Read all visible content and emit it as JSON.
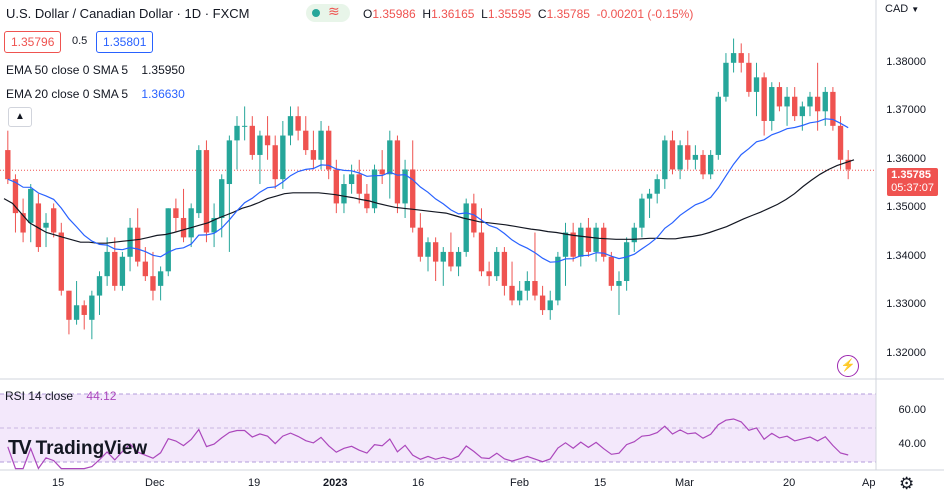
{
  "header": {
    "title": "U.S. Dollar / Canadian Dollar · 1D · FXCM",
    "ohlc": [
      {
        "label": "O",
        "value": "1.35986"
      },
      {
        "label": "H",
        "value": "1.36165"
      },
      {
        "label": "L",
        "value": "1.35595"
      },
      {
        "label": "C",
        "value": "1.35785"
      },
      {
        "label": "",
        "value": "-0.00201 (-0.15%)"
      }
    ],
    "status_icon": "market-status-icon",
    "wave_glyph": "≋"
  },
  "quote": {
    "bid": "1.35796",
    "spread": "0.5",
    "ask": "1.35801"
  },
  "indicators": {
    "ema50": {
      "label": "EMA 50 close 0 SMA 5",
      "value": "1.35950",
      "color": "#131722"
    },
    "ema20": {
      "label": "EMA 20 close 0 SMA 5",
      "value": "1.36630",
      "color": "#2962ff"
    }
  },
  "price_axis": {
    "currency": "CAD",
    "ticks": [
      "1.38000",
      "1.37000",
      "1.36000",
      "1.35000",
      "1.34000",
      "1.33000",
      "1.32000"
    ],
    "current_price": "1.35785",
    "countdown": "05:37:07"
  },
  "rsi": {
    "label": "RSI 14 close",
    "value": "44.12",
    "ticks": [
      "60.00",
      "40.00"
    ],
    "color": "#ab47bc"
  },
  "time_axis": {
    "ticks": [
      "15",
      "Dec",
      "19",
      "2023",
      "16",
      "Feb",
      "15",
      "Mar",
      "20",
      "Ap"
    ]
  },
  "brand": {
    "name": "TradingView",
    "logo": "TV"
  },
  "colors": {
    "up": "#26a69a",
    "down": "#ef5350",
    "ema50": "#131722",
    "ema20": "#2962ff",
    "rsi": "#ab47bc"
  },
  "chart_data": {
    "type": "candlestick",
    "ylim": [
      1.315,
      1.388
    ],
    "candles": [
      [
        1.362,
        1.366,
        1.355,
        1.356
      ],
      [
        1.356,
        1.357,
        1.345,
        1.349
      ],
      [
        1.349,
        1.352,
        1.343,
        1.345
      ],
      [
        1.347,
        1.355,
        1.343,
        1.354
      ],
      [
        1.351,
        1.353,
        1.341,
        1.342
      ],
      [
        1.346,
        1.349,
        1.342,
        1.347
      ],
      [
        1.35,
        1.351,
        1.344,
        1.345
      ],
      [
        1.345,
        1.347,
        1.332,
        1.333
      ],
      [
        1.333,
        1.333,
        1.324,
        1.327
      ],
      [
        1.327,
        1.335,
        1.326,
        1.33
      ],
      [
        1.33,
        1.331,
        1.325,
        1.328
      ],
      [
        1.327,
        1.333,
        1.323,
        1.332
      ],
      [
        1.332,
        1.337,
        1.328,
        1.336
      ],
      [
        1.336,
        1.344,
        1.334,
        1.341
      ],
      [
        1.341,
        1.344,
        1.333,
        1.334
      ],
      [
        1.334,
        1.341,
        1.333,
        1.34
      ],
      [
        1.34,
        1.348,
        1.337,
        1.346
      ],
      [
        1.346,
        1.35,
        1.338,
        1.339
      ],
      [
        1.339,
        1.342,
        1.335,
        1.336
      ],
      [
        1.336,
        1.341,
        1.331,
        1.333
      ],
      [
        1.334,
        1.338,
        1.331,
        1.337
      ],
      [
        1.337,
        1.35,
        1.336,
        1.35
      ],
      [
        1.35,
        1.352,
        1.345,
        1.348
      ],
      [
        1.348,
        1.354,
        1.343,
        1.344
      ],
      [
        1.344,
        1.351,
        1.342,
        1.35
      ],
      [
        1.349,
        1.363,
        1.348,
        1.362
      ],
      [
        1.362,
        1.364,
        1.343,
        1.345
      ],
      [
        1.345,
        1.351,
        1.342,
        1.348
      ],
      [
        1.348,
        1.357,
        1.344,
        1.356
      ],
      [
        1.355,
        1.365,
        1.341,
        1.364
      ],
      [
        1.364,
        1.369,
        1.358,
        1.367
      ],
      [
        1.367,
        1.371,
        1.364,
        1.367
      ],
      [
        1.367,
        1.369,
        1.36,
        1.361
      ],
      [
        1.361,
        1.366,
        1.355,
        1.365
      ],
      [
        1.365,
        1.369,
        1.36,
        1.363
      ],
      [
        1.363,
        1.365,
        1.354,
        1.356
      ],
      [
        1.356,
        1.368,
        1.354,
        1.365
      ],
      [
        1.365,
        1.371,
        1.363,
        1.369
      ],
      [
        1.369,
        1.371,
        1.364,
        1.366
      ],
      [
        1.366,
        1.369,
        1.361,
        1.362
      ],
      [
        1.362,
        1.366,
        1.358,
        1.36
      ],
      [
        1.36,
        1.368,
        1.358,
        1.366
      ],
      [
        1.366,
        1.367,
        1.356,
        1.358
      ],
      [
        1.358,
        1.36,
        1.349,
        1.351
      ],
      [
        1.351,
        1.357,
        1.349,
        1.355
      ],
      [
        1.355,
        1.359,
        1.353,
        1.357
      ],
      [
        1.357,
        1.36,
        1.351,
        1.353
      ],
      [
        1.353,
        1.355,
        1.349,
        1.35
      ],
      [
        1.35,
        1.359,
        1.349,
        1.358
      ],
      [
        1.358,
        1.362,
        1.355,
        1.357
      ],
      [
        1.357,
        1.366,
        1.352,
        1.364
      ],
      [
        1.364,
        1.365,
        1.349,
        1.351
      ],
      [
        1.351,
        1.36,
        1.348,
        1.358
      ],
      [
        1.358,
        1.364,
        1.345,
        1.346
      ],
      [
        1.346,
        1.349,
        1.339,
        1.34
      ],
      [
        1.34,
        1.344,
        1.337,
        1.343
      ],
      [
        1.343,
        1.344,
        1.335,
        1.339
      ],
      [
        1.339,
        1.342,
        1.334,
        1.341
      ],
      [
        1.341,
        1.345,
        1.337,
        1.338
      ],
      [
        1.338,
        1.342,
        1.336,
        1.341
      ],
      [
        1.341,
        1.352,
        1.34,
        1.351
      ],
      [
        1.351,
        1.353,
        1.344,
        1.345
      ],
      [
        1.345,
        1.35,
        1.336,
        1.337
      ],
      [
        1.337,
        1.339,
        1.334,
        1.336
      ],
      [
        1.336,
        1.342,
        1.335,
        1.341
      ],
      [
        1.341,
        1.342,
        1.332,
        1.334
      ],
      [
        1.334,
        1.339,
        1.33,
        1.331
      ],
      [
        1.331,
        1.335,
        1.33,
        1.333
      ],
      [
        1.333,
        1.337,
        1.331,
        1.335
      ],
      [
        1.335,
        1.345,
        1.331,
        1.332
      ],
      [
        1.332,
        1.334,
        1.328,
        1.329
      ],
      [
        1.329,
        1.333,
        1.327,
        1.331
      ],
      [
        1.331,
        1.341,
        1.33,
        1.34
      ],
      [
        1.34,
        1.347,
        1.334,
        1.345
      ],
      [
        1.345,
        1.347,
        1.339,
        1.34
      ],
      [
        1.34,
        1.347,
        1.338,
        1.346
      ],
      [
        1.346,
        1.348,
        1.34,
        1.341
      ],
      [
        1.341,
        1.347,
        1.339,
        1.346
      ],
      [
        1.346,
        1.347,
        1.339,
        1.34
      ],
      [
        1.34,
        1.341,
        1.333,
        1.334
      ],
      [
        1.334,
        1.337,
        1.328,
        1.335
      ],
      [
        1.335,
        1.344,
        1.333,
        1.343
      ],
      [
        1.343,
        1.347,
        1.341,
        1.346
      ],
      [
        1.346,
        1.353,
        1.344,
        1.352
      ],
      [
        1.352,
        1.354,
        1.348,
        1.353
      ],
      [
        1.353,
        1.357,
        1.351,
        1.356
      ],
      [
        1.356,
        1.365,
        1.354,
        1.364
      ],
      [
        1.364,
        1.366,
        1.357,
        1.358
      ],
      [
        1.358,
        1.364,
        1.356,
        1.363
      ],
      [
        1.363,
        1.366,
        1.358,
        1.36
      ],
      [
        1.36,
        1.363,
        1.358,
        1.361
      ],
      [
        1.361,
        1.362,
        1.356,
        1.357
      ],
      [
        1.357,
        1.362,
        1.356,
        1.361
      ],
      [
        1.361,
        1.374,
        1.36,
        1.373
      ],
      [
        1.373,
        1.382,
        1.372,
        1.38
      ],
      [
        1.38,
        1.385,
        1.378,
        1.382
      ],
      [
        1.382,
        1.384,
        1.378,
        1.38
      ],
      [
        1.38,
        1.382,
        1.373,
        1.374
      ],
      [
        1.374,
        1.38,
        1.369,
        1.377
      ],
      [
        1.377,
        1.378,
        1.365,
        1.368
      ],
      [
        1.368,
        1.376,
        1.366,
        1.375
      ],
      [
        1.375,
        1.376,
        1.37,
        1.371
      ],
      [
        1.371,
        1.375,
        1.367,
        1.373
      ],
      [
        1.373,
        1.375,
        1.368,
        1.369
      ],
      [
        1.369,
        1.372,
        1.366,
        1.371
      ],
      [
        1.371,
        1.374,
        1.369,
        1.373
      ],
      [
        1.373,
        1.38,
        1.366,
        1.37
      ],
      [
        1.37,
        1.375,
        1.367,
        1.374
      ],
      [
        1.374,
        1.375,
        1.366,
        1.367
      ],
      [
        1.367,
        1.369,
        1.358,
        1.36
      ],
      [
        1.36,
        1.362,
        1.356,
        1.358
      ]
    ],
    "series": [
      {
        "name": "EMA 50 close 0 SMA 5",
        "values": [
          1.352,
          1.351,
          1.349,
          1.347,
          1.346,
          1.345,
          1.3445,
          1.344,
          1.3435,
          1.343,
          1.343,
          1.3428,
          1.3428,
          1.343,
          1.3432,
          1.3434,
          1.3436,
          1.344,
          1.3444,
          1.3446,
          1.345,
          1.3455,
          1.346,
          1.3465,
          1.347,
          1.3478,
          1.3485,
          1.3492,
          1.35,
          1.3505,
          1.3512,
          1.352,
          1.3525,
          1.353,
          1.3532,
          1.3532,
          1.3532,
          1.3532,
          1.353,
          1.3528,
          1.3525,
          1.3522,
          1.3518,
          1.3515,
          1.351,
          1.3506,
          1.3502,
          1.35,
          1.3498,
          1.3496,
          1.3494,
          1.3492,
          1.349,
          1.3485,
          1.348,
          1.3476,
          1.3472,
          1.347,
          1.3468,
          1.3466,
          1.3463,
          1.346,
          1.3457,
          1.3455,
          1.3452,
          1.345,
          1.3447,
          1.3444,
          1.3442,
          1.344,
          1.3438,
          1.3437,
          1.3436,
          1.3436,
          1.3436,
          1.3437,
          1.3438,
          1.3438,
          1.3437,
          1.3437,
          1.344,
          1.3442,
          1.3445,
          1.345,
          1.3456,
          1.3462,
          1.347,
          1.3478,
          1.3485,
          1.3492,
          1.35,
          1.3508,
          1.3518,
          1.353,
          1.3545,
          1.3558,
          1.357,
          1.358,
          1.3588,
          1.3594,
          1.36
        ]
      }
    ]
  }
}
